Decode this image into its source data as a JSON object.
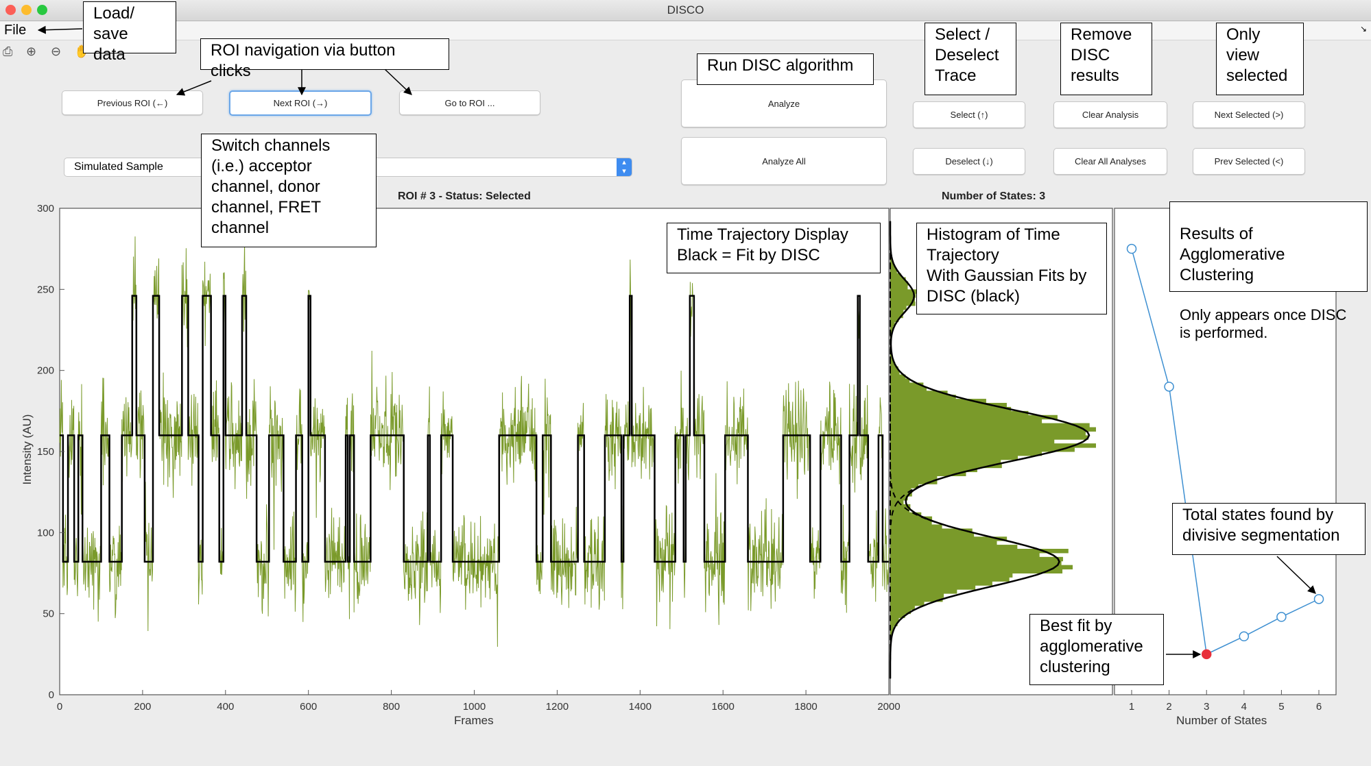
{
  "window": {
    "title": "DISCO"
  },
  "menu": {
    "file": "File"
  },
  "toolbar": {
    "icons": [
      "print-icon",
      "zoom-in-icon",
      "zoom-out-icon",
      "pan-icon"
    ]
  },
  "nav": {
    "previous": "Previous ROI (←)",
    "next": "Next ROI (→)",
    "goto": "Go to ROI ..."
  },
  "analysis": {
    "analyze": "Analyze",
    "analyze_all": "Analyze All"
  },
  "selection": {
    "select": "Select (↑)",
    "deselect": "Deselect (↓)"
  },
  "clear": {
    "clear": "Clear Analysis",
    "clear_all": "Clear All Analyses"
  },
  "view_selected": {
    "next": "Next Selected (>)",
    "prev": "Prev Selected (<)"
  },
  "channel_select": {
    "value": "Simulated Sample"
  },
  "trajectory": {
    "title": "ROI # 3 - Status: Selected",
    "xlabel": "Frames",
    "ylabel": "Intensity (AU)",
    "x_ticks": [
      "0",
      "200",
      "400",
      "600",
      "800",
      "1000",
      "1200",
      "1400",
      "1600",
      "1800",
      "2000"
    ],
    "y_ticks": [
      "0",
      "50",
      "100",
      "150",
      "200",
      "250",
      "300"
    ]
  },
  "histogram": {
    "title": "Number of States: 3"
  },
  "clustering": {
    "xlabel": "Number of States",
    "x_ticks": [
      "1",
      "2",
      "3",
      "4",
      "5",
      "6"
    ]
  },
  "colors": {
    "trace": "#7a9a2a",
    "fit": "#000000",
    "cluster_line": "#3d8fd1",
    "best": "#e8303a"
  },
  "chart_data": [
    {
      "type": "line",
      "title": "ROI # 3 - Status: Selected",
      "xlabel": "Frames",
      "ylabel": "Intensity (AU)",
      "xlim": [
        0,
        2000
      ],
      "ylim": [
        0,
        300
      ],
      "series": [
        {
          "name": "",
          "style": "noisy-trace",
          "states": [
            82,
            160,
            246
          ]
        },
        {
          "name": "",
          "style": "step-fit",
          "segments": [
            [
              0,
              160
            ],
            [
              8,
              82
            ],
            [
              20,
              160
            ],
            [
              35,
              82
            ],
            [
              45,
              160
            ],
            [
              55,
              82
            ],
            [
              100,
              160
            ],
            [
              120,
              82
            ],
            [
              150,
              160
            ],
            [
              175,
              246
            ],
            [
              185,
              160
            ],
            [
              205,
              82
            ],
            [
              225,
              246
            ],
            [
              240,
              160
            ],
            [
              295,
              246
            ],
            [
              310,
              160
            ],
            [
              335,
              82
            ],
            [
              345,
              246
            ],
            [
              365,
              160
            ],
            [
              385,
              82
            ],
            [
              395,
              246
            ],
            [
              400,
              160
            ],
            [
              440,
              246
            ],
            [
              450,
              160
            ],
            [
              475,
              82
            ],
            [
              505,
              160
            ],
            [
              540,
              82
            ],
            [
              570,
              160
            ],
            [
              585,
              82
            ],
            [
              600,
              246
            ],
            [
              605,
              160
            ],
            [
              640,
              82
            ],
            [
              690,
              160
            ],
            [
              695,
              82
            ],
            [
              700,
              160
            ],
            [
              710,
              82
            ],
            [
              750,
              160
            ],
            [
              830,
              82
            ],
            [
              888,
              160
            ],
            [
              893,
              82
            ],
            [
              920,
              160
            ],
            [
              948,
              82
            ],
            [
              1060,
              160
            ],
            [
              1150,
              82
            ],
            [
              1165,
              160
            ],
            [
              1185,
              82
            ],
            [
              1250,
              160
            ],
            [
              1265,
              82
            ],
            [
              1315,
              160
            ],
            [
              1355,
              82
            ],
            [
              1360,
              160
            ],
            [
              1375,
              246
            ],
            [
              1380,
              160
            ],
            [
              1435,
              82
            ],
            [
              1485,
              160
            ],
            [
              1505,
              82
            ],
            [
              1510,
              160
            ],
            [
              1520,
              246
            ],
            [
              1530,
              160
            ],
            [
              1555,
              82
            ],
            [
              1605,
              160
            ],
            [
              1660,
              82
            ],
            [
              1745,
              160
            ],
            [
              1810,
              82
            ],
            [
              1835,
              160
            ],
            [
              1885,
              82
            ],
            [
              1905,
              160
            ],
            [
              1925,
              246
            ],
            [
              1930,
              160
            ],
            [
              1950,
              82
            ],
            [
              1975,
              160
            ],
            [
              1985,
              82
            ],
            [
              2000,
              82
            ]
          ]
        }
      ]
    },
    {
      "type": "bar",
      "title": "Number of States: 3",
      "orientation": "horizontal",
      "ylim": [
        0,
        300
      ],
      "components": [
        {
          "mean": 160,
          "sd": 16,
          "weight": 1.0
        },
        {
          "mean": 82,
          "sd": 15,
          "weight": 0.85
        },
        {
          "mean": 246,
          "sd": 10,
          "weight": 0.12
        }
      ]
    },
    {
      "type": "line",
      "xlabel": "Number of States",
      "x": [
        1,
        2,
        3,
        4,
        5,
        6
      ],
      "y": [
        275,
        190,
        25,
        36,
        48,
        59
      ],
      "ylim": [
        0,
        300
      ],
      "best_fit_x": 3
    }
  ],
  "annotations": {
    "load_save": "Load/\nsave\ndata",
    "roi_nav": "ROI navigation via button\nclicks",
    "run_disc": "Run DISC algorithm",
    "select_deselect": "Select /\nDeselect\nTrace",
    "remove_disc": "Remove\nDISC\nresults",
    "only_view": "Only\nview\nselected",
    "switch_channels": "Switch channels\n(i.e.) acceptor\nchannel, donor\nchannel, FRET\nchannel",
    "time_traj": "Time Trajectory Display\nBlack = Fit by DISC",
    "histogram": "Histogram of Time\nTrajectory\nWith Gaussian Fits by\nDISC (black)",
    "agglomerative": "Results of\nAgglomerative\nClustering",
    "agglomerative_note": "Only appears once DISC\nis performed.",
    "total_states": "Total states found by\ndivisive segmentation",
    "best_fit": "Best fit by\nagglomerative\nclustering"
  }
}
